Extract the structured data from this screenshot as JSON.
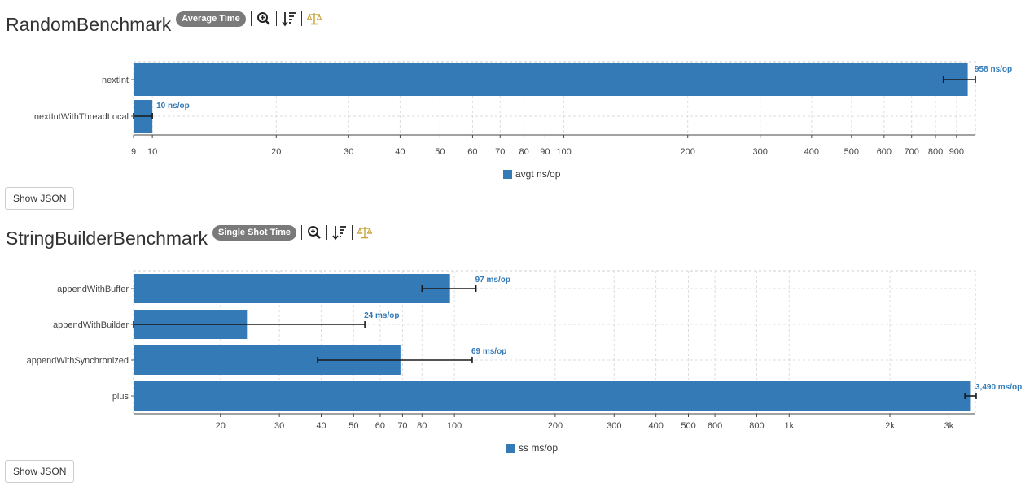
{
  "colors": {
    "bar": "#337ab7",
    "label": "#337ab7",
    "badge": "#7a7a7a",
    "balance_icon": "#c8a23a"
  },
  "icons": [
    "zoom-in-icon",
    "sort-descending-icon",
    "balance-scale-icon"
  ],
  "benchmarks": [
    {
      "title": "RandomBenchmark",
      "mode_badge": "Average Time",
      "show_json_label": "Show JSON",
      "legend_label": "avgt ns/op"
    },
    {
      "title": "StringBuilderBenchmark",
      "mode_badge": "Single Shot Time",
      "show_json_label": "Show JSON",
      "legend_label": "ss ms/op"
    }
  ],
  "chart_data": [
    {
      "type": "bar",
      "orientation": "horizontal",
      "x_scale": "log",
      "xlim": [
        9,
        1000
      ],
      "grid": true,
      "legend": "bottom-center",
      "unit": "ns/op",
      "categories": [
        "nextInt",
        "nextIntWithThreadLocal"
      ],
      "values": [
        958,
        10
      ],
      "error_low": [
        836,
        9
      ],
      "error_high": [
        1000,
        10
      ],
      "value_labels": [
        "958 ns/op",
        "10 ns/op"
      ],
      "ticks": [
        9,
        10,
        20,
        30,
        40,
        50,
        60,
        70,
        80,
        90,
        100,
        200,
        300,
        400,
        500,
        600,
        700,
        800,
        900
      ],
      "tick_labels": [
        "9",
        "10",
        "20",
        "30",
        "40",
        "50",
        "60",
        "70",
        "80",
        "90",
        "100",
        "200",
        "300",
        "400",
        "500",
        "600",
        "700",
        "800",
        "900"
      ],
      "series": [
        {
          "name": "avgt ns/op",
          "values": [
            958,
            10
          ]
        }
      ]
    },
    {
      "type": "bar",
      "orientation": "horizontal",
      "x_scale": "log",
      "xlim": [
        11,
        3600
      ],
      "grid": true,
      "legend": "bottom-center",
      "unit": "ms/op",
      "categories": [
        "appendWithBuffer",
        "appendWithBuilder",
        "appendWithSynchronized",
        "plus"
      ],
      "values": [
        97,
        24,
        69,
        3490
      ],
      "error_low": [
        80,
        11,
        39,
        3350
      ],
      "error_high": [
        116,
        54,
        113,
        3620
      ],
      "value_labels": [
        "97 ms/op",
        "24 ms/op",
        "69 ms/op",
        "3,490 ms/op"
      ],
      "ticks": [
        20,
        30,
        40,
        50,
        60,
        70,
        80,
        100,
        200,
        300,
        400,
        500,
        600,
        800,
        1000,
        2000,
        3000
      ],
      "tick_labels": [
        "20",
        "30",
        "40",
        "50",
        "60",
        "70",
        "80",
        "100",
        "200",
        "300",
        "400",
        "500",
        "600",
        "800",
        "1k",
        "2k",
        "3k"
      ],
      "series": [
        {
          "name": "ss ms/op",
          "values": [
            97,
            24,
            69,
            3490
          ]
        }
      ]
    }
  ]
}
